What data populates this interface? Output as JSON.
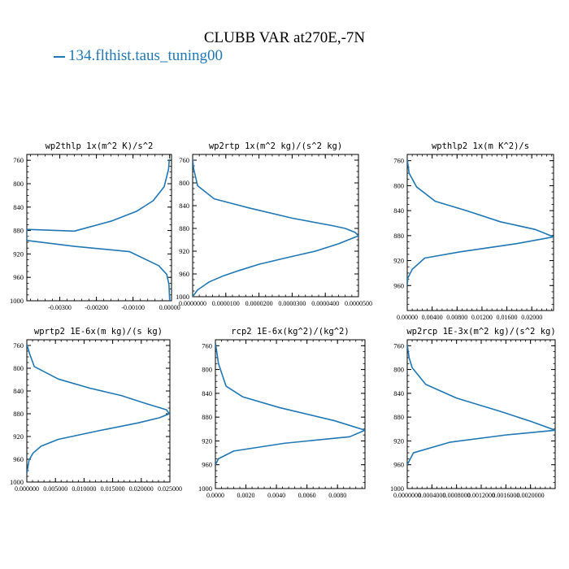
{
  "page": {
    "title": "CLUBB VAR at270E,-7N"
  },
  "legend": {
    "label": "134.flthist.taus_tuning00"
  },
  "colors": {
    "series": "#1f77b4",
    "axis": "#000000"
  },
  "chart_data": [
    {
      "type": "line",
      "title": "wp2thlp   1x(m^2 K)/s^2",
      "ylim": [
        1000,
        750
      ],
      "yticks": [
        760,
        800,
        840,
        880,
        920,
        960,
        1000
      ],
      "xlim": [
        -0.0039,
        5e-05
      ],
      "xticks": [
        -0.003,
        -0.002,
        -0.001,
        0.0
      ],
      "xtick_labels": [
        "-0.00300",
        "-0.00200",
        "-0.00100",
        "0.00000"
      ],
      "x": [
        -1e-05,
        -3e-05,
        -0.00015,
        -0.00045,
        -0.0009,
        -0.0016,
        -0.0026,
        -0.0039,
        -0.0039,
        -0.0026,
        -0.0011,
        -0.0003,
        -8e-05,
        -2e-05,
        0.0
      ],
      "y": [
        758,
        775,
        805,
        829,
        847,
        864,
        881,
        878,
        897,
        907,
        916,
        940,
        955,
        972,
        1000
      ]
    },
    {
      "type": "line",
      "title": "wp2rtp   1x(m^2 kg)/(s^2 kg)",
      "ylim": [
        1000,
        750
      ],
      "yticks": [
        760,
        800,
        840,
        880,
        920,
        960,
        1000
      ],
      "xlim": [
        0.0,
        5e-05
      ],
      "xticks": [
        0.0,
        1e-05,
        2e-05,
        3e-05,
        4e-05,
        5e-05
      ],
      "xtick_labels": [
        "0.0000000",
        "0.0000100",
        "0.0000200",
        "0.0000300",
        "0.0000400",
        "0.0000500"
      ],
      "x": [
        0.0,
        3e-07,
        1.5e-06,
        6.5e-06,
        1.7e-05,
        3e-05,
        4.2e-05,
        4.6e-05,
        4.9e-05,
        5e-05,
        4.4e-05,
        3.7e-05,
        2.8e-05,
        2e-05,
        1.4e-05,
        9e-06,
        5e-06,
        1.5e-06,
        0.0
      ],
      "y": [
        758,
        775,
        805,
        828,
        844,
        862,
        875,
        880,
        887,
        893,
        907,
        920,
        932,
        943,
        954,
        964,
        974,
        988,
        1000
      ]
    },
    {
      "type": "line",
      "title": "wpthlp2   1x(m K^2)/s",
      "ylim": [
        1000,
        750
      ],
      "yticks": [
        760,
        800,
        840,
        880,
        920,
        960
      ],
      "xlim": [
        0.0,
        0.0235
      ],
      "xticks": [
        0.0,
        0.004,
        0.008,
        0.012,
        0.016,
        0.02
      ],
      "xtick_labels": [
        "0.00000",
        "0.00400",
        "0.00800",
        "0.01200",
        "0.01600",
        "0.02000"
      ],
      "x": [
        0.0,
        0.0003,
        0.0015,
        0.0045,
        0.0095,
        0.015,
        0.0205,
        0.0235,
        0.0175,
        0.0085,
        0.0028,
        0.0008,
        0.0001,
        0.0
      ],
      "y": [
        758,
        780,
        802,
        825,
        840,
        858,
        870,
        882,
        893,
        906,
        916,
        934,
        948,
        960
      ]
    },
    {
      "type": "line",
      "title": "wprtp2   1E-6x(m kg)/(s kg)",
      "ylim": [
        1000,
        750
      ],
      "yticks": [
        760,
        800,
        840,
        880,
        920,
        960,
        1000
      ],
      "xlim": [
        0.0,
        0.025
      ],
      "xticks": [
        0.0,
        0.005,
        0.01,
        0.015,
        0.02,
        0.025
      ],
      "xtick_labels": [
        "0.000000",
        "0.005000",
        "0.010000",
        "0.015000",
        "0.020000",
        "0.025000"
      ],
      "x": [
        0.0,
        0.0005,
        0.0013,
        0.0055,
        0.011,
        0.0165,
        0.0205,
        0.0244,
        0.0249,
        0.0232,
        0.0195,
        0.0125,
        0.0055,
        0.0025,
        0.0011,
        0.0004,
        0.0
      ],
      "y": [
        758,
        775,
        797,
        819,
        835,
        848,
        861,
        873,
        880,
        887,
        896,
        910,
        925,
        937,
        949,
        961,
        985
      ]
    },
    {
      "type": "line",
      "title": "rcp2   1E-6x(kg^2)/(kg^2)",
      "ylim": [
        1000,
        750
      ],
      "yticks": [
        760,
        800,
        840,
        880,
        920,
        960,
        1000
      ],
      "xlim": [
        0.0,
        0.0098
      ],
      "xticks": [
        0.0,
        0.002,
        0.004,
        0.006,
        0.008
      ],
      "xtick_labels": [
        "0.0000",
        "0.0020",
        "0.0040",
        "0.0060",
        "0.0080"
      ],
      "x": [
        0.0,
        0.0002,
        0.0007,
        0.0018,
        0.0042,
        0.0078,
        0.0098,
        0.0088,
        0.0045,
        0.0012,
        0.0002,
        0.0
      ],
      "y": [
        755,
        790,
        828,
        846,
        864,
        886,
        902,
        913,
        924,
        937,
        950,
        960
      ]
    },
    {
      "type": "line",
      "title": "wp2rcp   1E-3x(m^2 kg)/(s^2 kg)",
      "ylim": [
        1000,
        750
      ],
      "yticks": [
        760,
        800,
        840,
        880,
        920,
        960,
        1000
      ],
      "xlim": [
        0.0,
        0.0024
      ],
      "xticks": [
        0.0,
        0.0004,
        0.0008,
        0.0012,
        0.0016,
        0.002
      ],
      "xtick_labels": [
        "0.0000000",
        "0.0004000",
        "0.0008000",
        "0.0012000",
        "0.0016000",
        "0.0020000"
      ],
      "x": [
        0.0,
        3e-05,
        8e-05,
        0.0003,
        0.0008,
        0.0015,
        0.002,
        0.0024,
        0.0016,
        0.0007,
        0.0001,
        0.0
      ],
      "y": [
        758,
        780,
        797,
        825,
        848,
        870,
        887,
        902,
        910,
        922,
        940,
        960
      ]
    }
  ]
}
